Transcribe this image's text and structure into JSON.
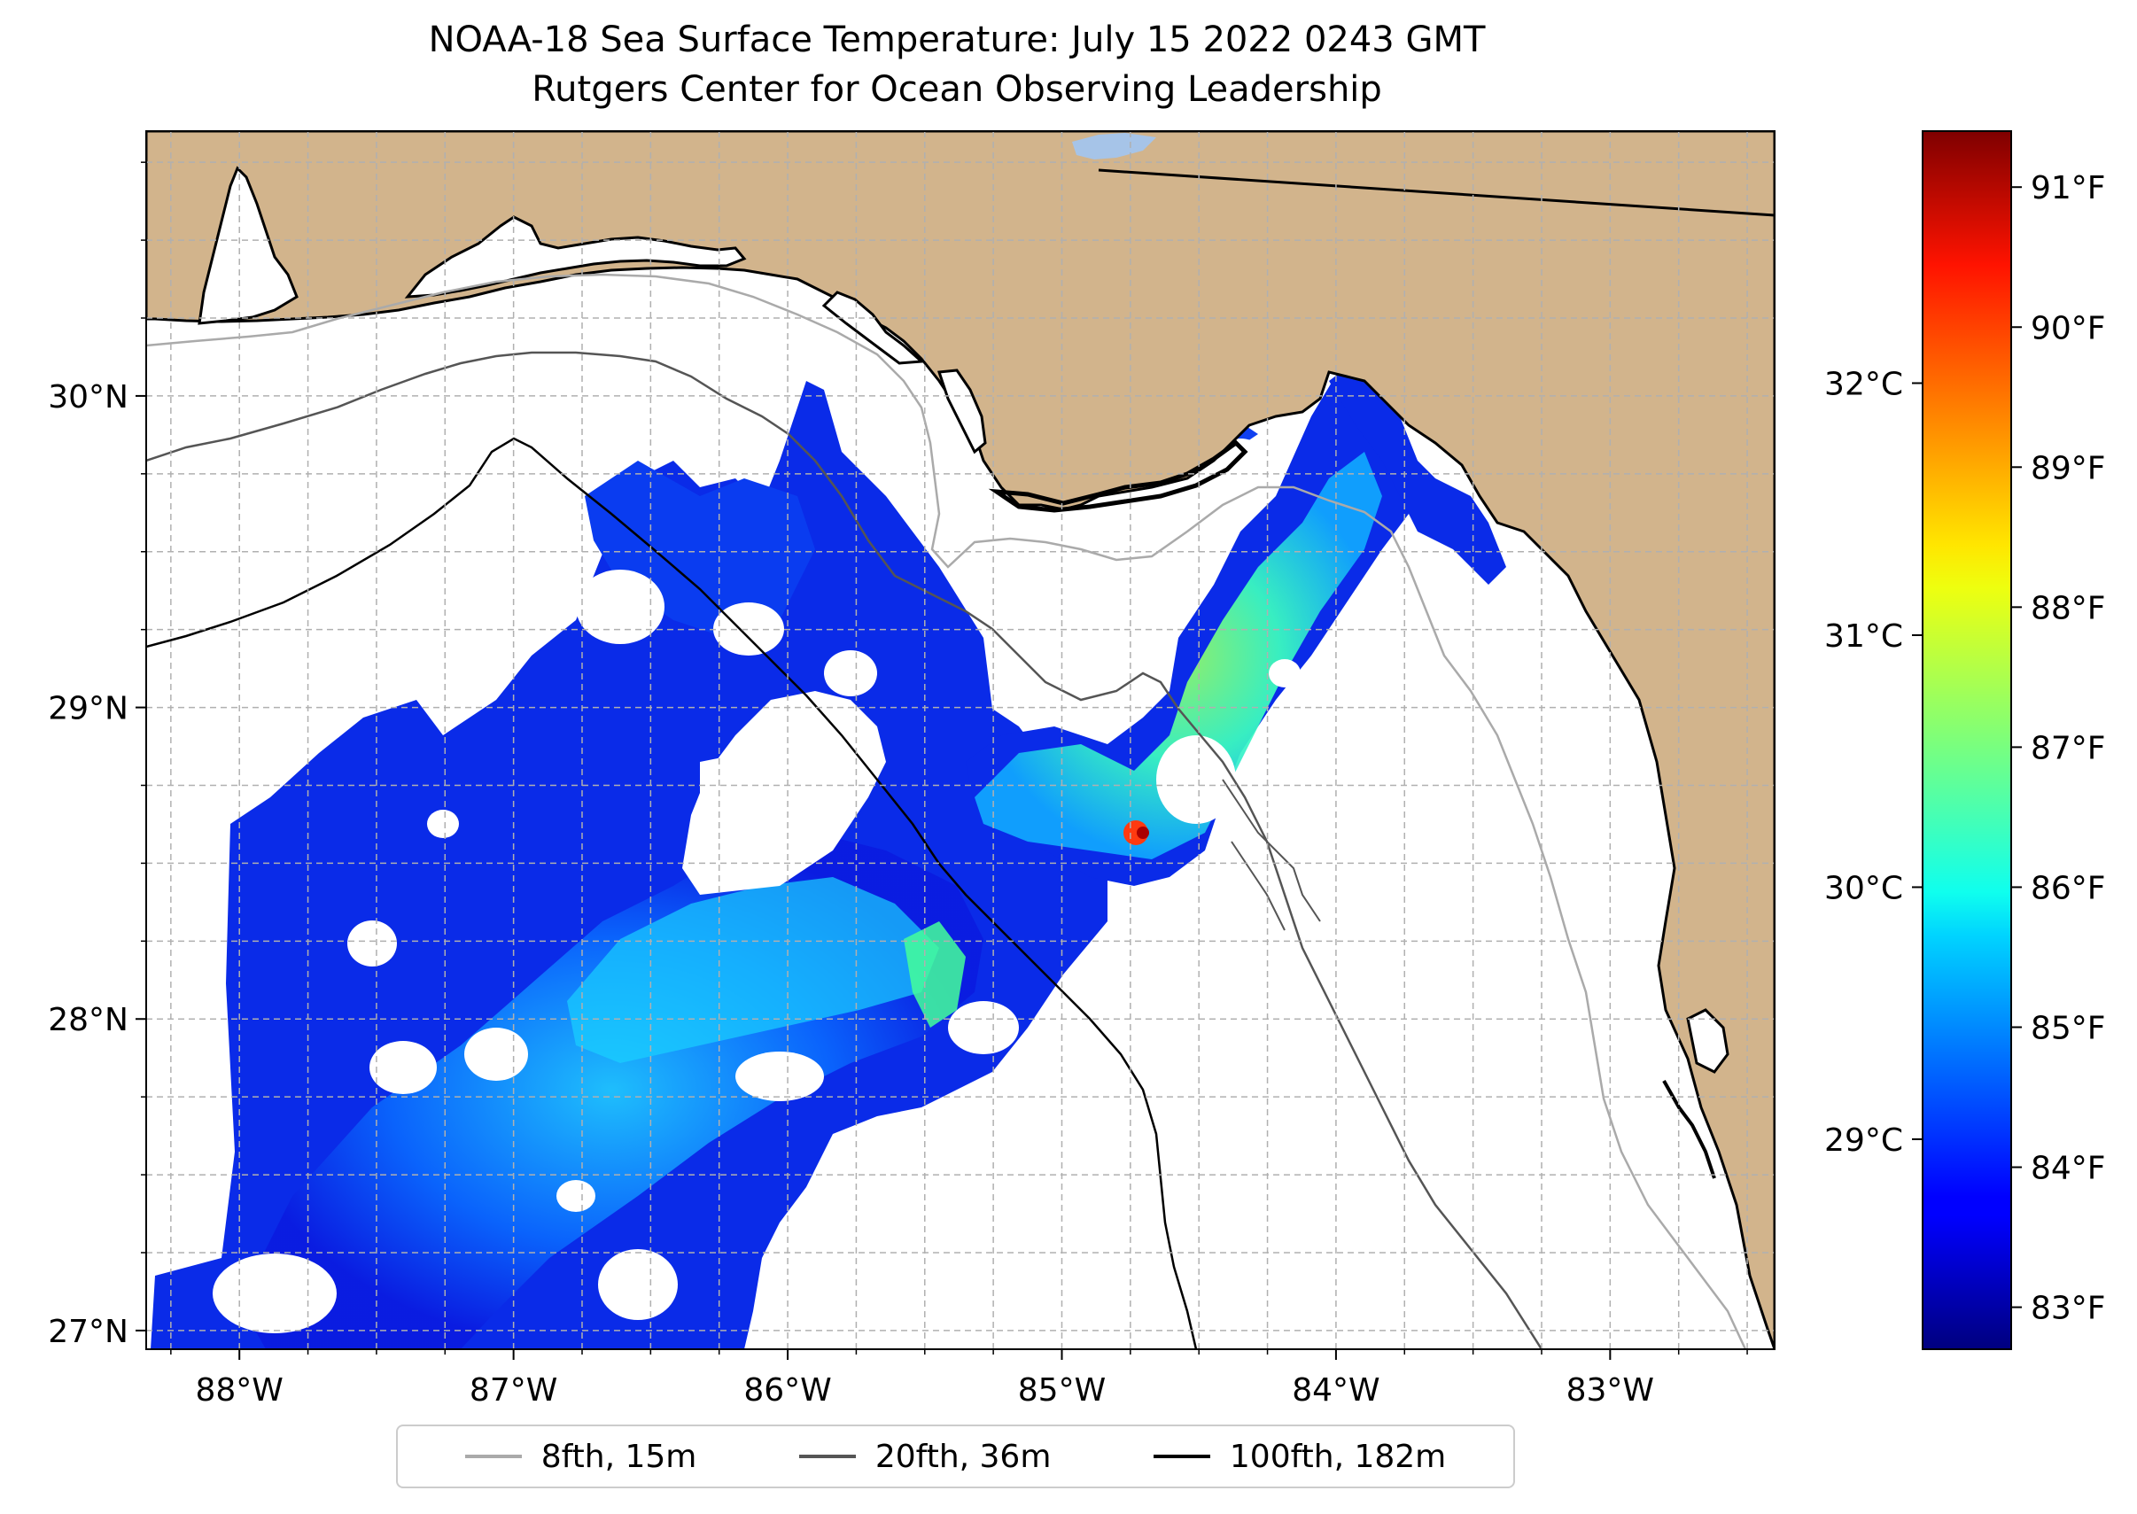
{
  "title": {
    "line1": "NOAA-18 Sea Surface Temperature: July 15 2022 0243 GMT",
    "line2": "Rutgers Center for Ocean Observing Leadership"
  },
  "map": {
    "lon_range": [
      -88.34,
      -82.4
    ],
    "lat_range": [
      26.94,
      30.85
    ],
    "lon_ticks": [
      {
        "lon": -88,
        "label": "88°W"
      },
      {
        "lon": -87,
        "label": "87°W"
      },
      {
        "lon": -86,
        "label": "86°W"
      },
      {
        "lon": -85,
        "label": "85°W"
      },
      {
        "lon": -84,
        "label": "84°W"
      },
      {
        "lon": -83,
        "label": "83°W"
      }
    ],
    "lat_ticks": [
      {
        "lat": 27,
        "label": "27°N"
      },
      {
        "lat": 28,
        "label": "28°N"
      },
      {
        "lat": 29,
        "label": "29°N"
      },
      {
        "lat": 30,
        "label": "30°N"
      }
    ],
    "gridlines": true,
    "colors": {
      "land": "#d2b48c",
      "ocean": "#ffffff",
      "lake": "#a6c4e8",
      "coastline": "#000000",
      "grid": "#b0b0b0"
    }
  },
  "colorbar": {
    "colormap": "jet",
    "f_range": [
      82.7,
      91.4
    ],
    "f_ticks": [
      "83°F",
      "84°F",
      "85°F",
      "86°F",
      "87°F",
      "88°F",
      "89°F",
      "90°F",
      "91°F"
    ],
    "c_ticks": [
      "29°C",
      "30°C",
      "31°C",
      "32°C"
    ],
    "c_values": [
      29,
      30,
      31,
      32
    ]
  },
  "legend": {
    "items": [
      {
        "label": "8fth, 15m",
        "color": "#aaaaaa"
      },
      {
        "label": "20fth, 36m",
        "color": "#555555"
      },
      {
        "label": "100fth, 182m",
        "color": "#000000"
      }
    ]
  }
}
